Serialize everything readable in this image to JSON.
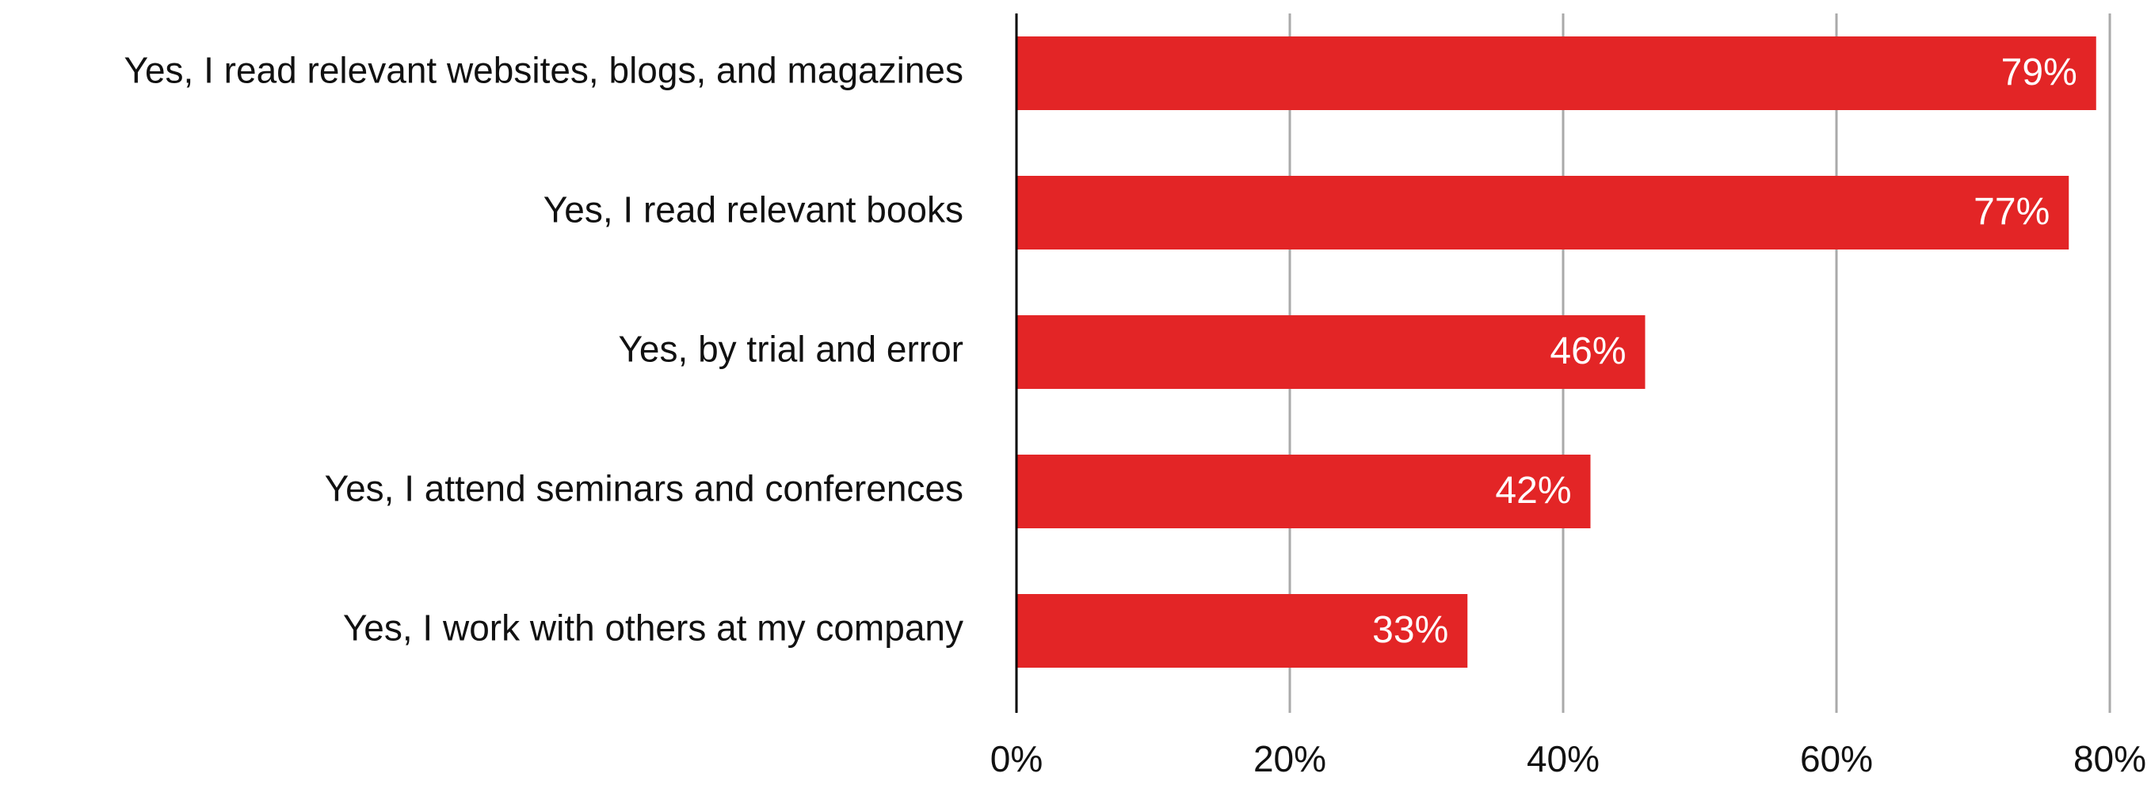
{
  "chart_data": {
    "type": "bar",
    "orientation": "horizontal",
    "categories": [
      "Yes, I read relevant websites, blogs, and magazines",
      "Yes, I read relevant books",
      "Yes, by trial and error",
      "Yes, I attend seminars and conferences",
      "Yes, I work with others at my company"
    ],
    "values": [
      79,
      77,
      46,
      42,
      33
    ],
    "value_labels": [
      "79%",
      "77%",
      "46%",
      "42%",
      "33%"
    ],
    "color": "#e32526",
    "xlim": [
      0,
      80
    ],
    "xticks": [
      {
        "value": 0,
        "label": "0%"
      },
      {
        "value": 20,
        "label": "20%"
      },
      {
        "value": 40,
        "label": "40%"
      },
      {
        "value": 60,
        "label": "60%"
      },
      {
        "value": 80,
        "label": "80%"
      }
    ],
    "grid": true
  }
}
